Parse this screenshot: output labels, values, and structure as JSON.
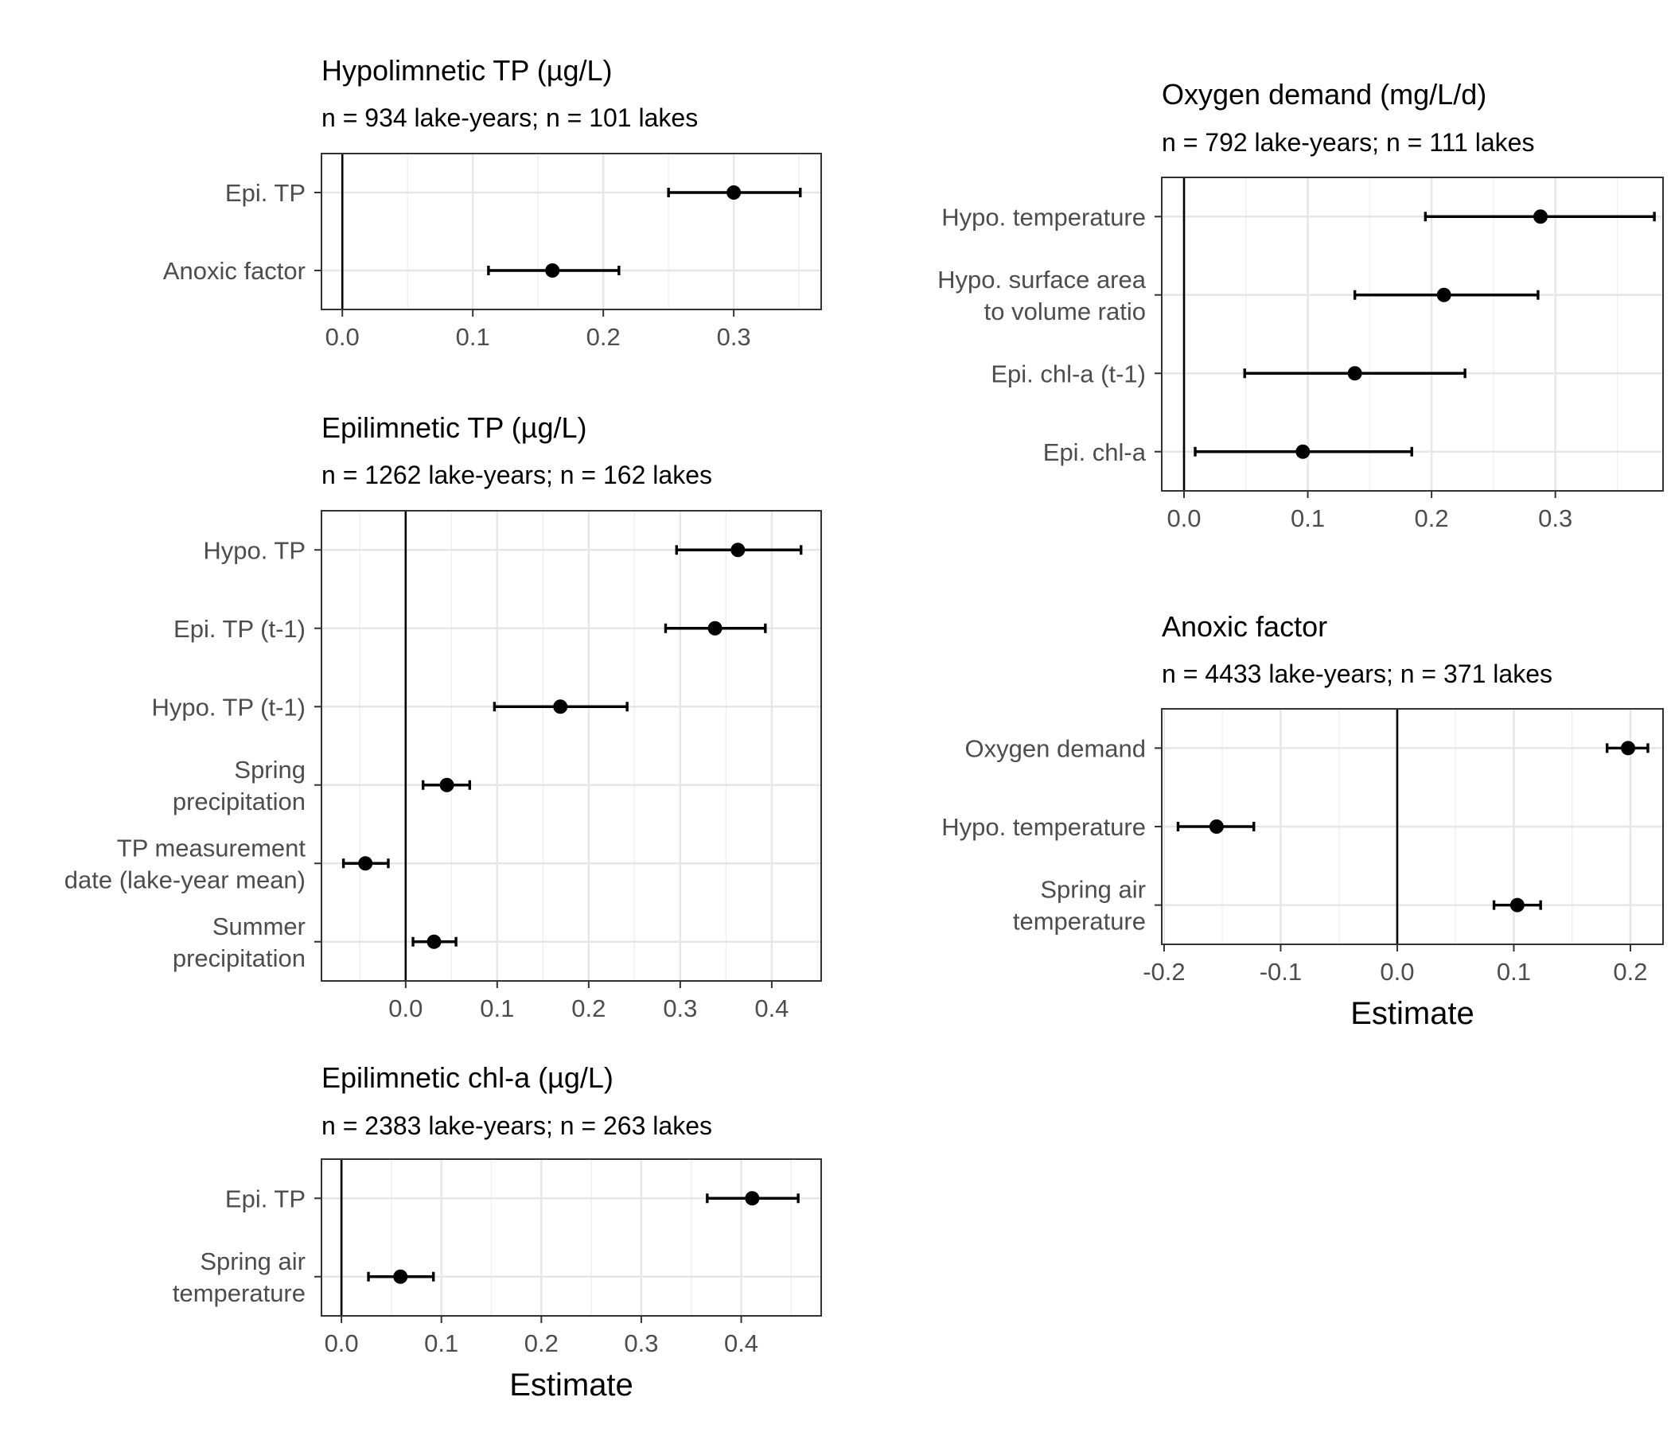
{
  "chart_data": [
    {
      "id": "p1",
      "type": "scatter",
      "title": "Hypolimnetic TP (µg/L)",
      "subtitle": "n = 934 lake-years; n = 101 lakes",
      "xlabel": "",
      "xlim": [
        -0.016,
        0.367
      ],
      "xticks": [
        "0.0",
        "0.1",
        "0.2",
        "0.3"
      ],
      "xtick_values": [
        0,
        0.1,
        0.2,
        0.3
      ],
      "zero_line": true,
      "categories": [
        [
          "Epi. TP"
        ],
        [
          "Anoxic factor"
        ]
      ],
      "estimate": [
        0.3,
        0.161
      ],
      "lower": [
        0.25,
        0.112
      ],
      "upper": [
        0.351,
        0.212
      ]
    },
    {
      "id": "p2",
      "type": "scatter",
      "title": "Epilimnetic TP (µg/L)",
      "subtitle": "n = 1262 lake-years; n = 162 lakes",
      "xlabel": "",
      "xlim": [
        -0.092,
        0.454
      ],
      "xticks": [
        "0.0",
        "0.1",
        "0.2",
        "0.3",
        "0.4"
      ],
      "xtick_values": [
        0,
        0.1,
        0.2,
        0.3,
        0.4
      ],
      "zero_line": true,
      "categories": [
        [
          "Hypo. TP"
        ],
        [
          "Epi. TP (t-1)"
        ],
        [
          "Hypo. TP (t-1)"
        ],
        [
          "Spring",
          "precipitation"
        ],
        [
          "TP measurement",
          "date (lake-year mean)"
        ],
        [
          "Summer",
          "precipitation"
        ]
      ],
      "estimate": [
        0.363,
        0.338,
        0.169,
        0.045,
        -0.044,
        0.031
      ],
      "lower": [
        0.296,
        0.284,
        0.097,
        0.019,
        -0.068,
        0.008
      ],
      "upper": [
        0.432,
        0.393,
        0.242,
        0.07,
        -0.019,
        0.055
      ]
    },
    {
      "id": "p3",
      "type": "scatter",
      "title": "Epilimnetic chl-a (µg/L)",
      "subtitle": "n = 2383 lake-years; n = 263 lakes",
      "xlabel": "Estimate",
      "xlim": [
        -0.02,
        0.48
      ],
      "xticks": [
        "0.0",
        "0.1",
        "0.2",
        "0.3",
        "0.4"
      ],
      "xtick_values": [
        0,
        0.1,
        0.2,
        0.3,
        0.4
      ],
      "zero_line": true,
      "categories": [
        [
          "Epi. TP"
        ],
        [
          "Spring air",
          "temperature"
        ]
      ],
      "estimate": [
        0.411,
        0.059
      ],
      "lower": [
        0.366,
        0.027
      ],
      "upper": [
        0.457,
        0.092
      ]
    },
    {
      "id": "p4",
      "type": "scatter",
      "title": "Oxygen demand (mg/L/d)",
      "subtitle": "n = 792 lake-years; n = 111 lakes",
      "xlabel": "",
      "xlim": [
        -0.018,
        0.387
      ],
      "xticks": [
        "0.0",
        "0.1",
        "0.2",
        "0.3"
      ],
      "xtick_values": [
        0,
        0.1,
        0.2,
        0.3
      ],
      "zero_line": true,
      "categories": [
        [
          "Hypo. temperature"
        ],
        [
          "Hypo. surface area",
          "to volume ratio"
        ],
        [
          "Epi. chl-a (t-1)"
        ],
        [
          "Epi. chl-a"
        ]
      ],
      "estimate": [
        0.288,
        0.21,
        0.138,
        0.096
      ],
      "lower": [
        0.195,
        0.138,
        0.049,
        0.009
      ],
      "upper": [
        0.38,
        0.286,
        0.227,
        0.184
      ]
    },
    {
      "id": "p5",
      "type": "scatter",
      "title": "Anoxic factor",
      "subtitle": "n = 4433 lake-years; n = 371 lakes",
      "xlabel": "Estimate",
      "xlim": [
        -0.202,
        0.228
      ],
      "xticks": [
        "-0.2",
        "-0.1",
        "0.0",
        "0.1",
        "0.2"
      ],
      "xtick_values": [
        -0.2,
        -0.1,
        0,
        0.1,
        0.2
      ],
      "zero_line": true,
      "categories": [
        [
          "Oxygen demand"
        ],
        [
          "Hypo. temperature"
        ],
        [
          "Spring air",
          "temperature"
        ]
      ],
      "estimate": [
        0.198,
        -0.155,
        0.103
      ],
      "lower": [
        0.18,
        -0.188,
        0.083
      ],
      "upper": [
        0.215,
        -0.123,
        0.123
      ]
    }
  ]
}
